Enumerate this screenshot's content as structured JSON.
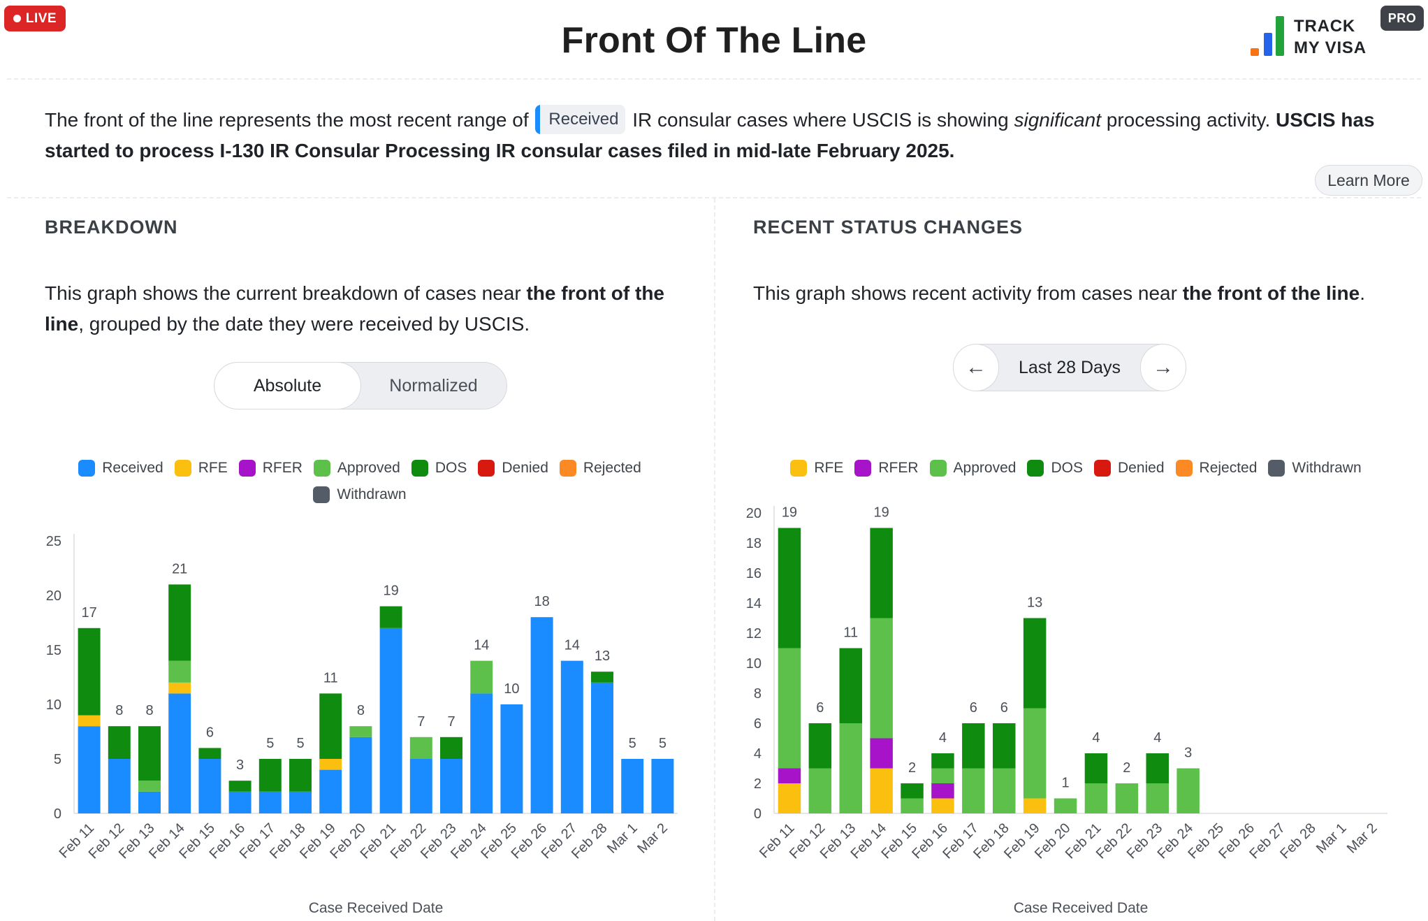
{
  "badge_live": "LIVE",
  "badge_pro": "PRO",
  "page_title": "Front Of The Line",
  "logo": {
    "line1": "TRACK",
    "line2": "MY VISA"
  },
  "intro": {
    "t1": "The front of the line represents the most recent range of",
    "chip": "Received",
    "t2": "IR consular cases where USCIS is showing",
    "t3": "significant",
    "t4": "processing activity.",
    "t5": "USCIS has started to process I-130 IR Consular Processing IR consular cases filed in mid-late February 2025."
  },
  "learn_more": "Learn More",
  "breakdown": {
    "heading": "BREAKDOWN",
    "desc_1": "This graph shows the current breakdown of cases near",
    "desc_bold_1": "the front of the line",
    "desc_2": ", grouped by the date they were received by USCIS.",
    "toggle": [
      "Absolute",
      "Normalized"
    ]
  },
  "recent": {
    "heading": "RECENT STATUS CHANGES",
    "desc_1": "This graph shows recent activity from cases near",
    "desc_bold_1": "the front of the line",
    "desc_2": ".",
    "range_label": "Last 28 Days",
    "prev_icon": "←",
    "next_icon": "→"
  },
  "colors": {
    "Received": "#1a8cff",
    "RFE": "#fbbf0f",
    "RFER": "#a613c9",
    "Approved": "#5cc04a",
    "DOS": "#0f8c0f",
    "Denied": "#d7190f",
    "Rejected": "#fb8a25",
    "Withdrawn": "#545c68"
  },
  "chart_data": [
    {
      "type": "bar",
      "stacked": true,
      "title": "BREAKDOWN",
      "xlabel": "Case Received Date",
      "ylabel": "",
      "ylim": [
        0,
        25
      ],
      "yticks": [
        0,
        5,
        10,
        15,
        20,
        25
      ],
      "legend": [
        "Received",
        "RFE",
        "RFER",
        "Approved",
        "DOS",
        "Denied",
        "Rejected",
        "Withdrawn"
      ],
      "categories": [
        "Feb 11",
        "Feb 12",
        "Feb 13",
        "Feb 14",
        "Feb 15",
        "Feb 16",
        "Feb 17",
        "Feb 18",
        "Feb 19",
        "Feb 20",
        "Feb 21",
        "Feb 22",
        "Feb 23",
        "Feb 24",
        "Feb 25",
        "Feb 26",
        "Feb 27",
        "Feb 28",
        "Mar 1",
        "Mar 2"
      ],
      "series": [
        {
          "name": "Received",
          "values": [
            8,
            5,
            2,
            11,
            5,
            2,
            2,
            2,
            4,
            7,
            17,
            5,
            5,
            11,
            10,
            18,
            14,
            12,
            5,
            5
          ]
        },
        {
          "name": "RFE",
          "values": [
            1,
            0,
            0,
            1,
            0,
            0,
            0,
            0,
            1,
            0,
            0,
            0,
            0,
            0,
            0,
            0,
            0,
            0,
            0,
            0
          ]
        },
        {
          "name": "RFER",
          "values": [
            0,
            0,
            0,
            0,
            0,
            0,
            0,
            0,
            0,
            0,
            0,
            0,
            0,
            0,
            0,
            0,
            0,
            0,
            0,
            0
          ]
        },
        {
          "name": "Approved",
          "values": [
            0,
            0,
            1,
            2,
            0,
            0,
            0,
            0,
            0,
            1,
            0,
            2,
            0,
            3,
            0,
            0,
            0,
            0,
            0,
            0
          ]
        },
        {
          "name": "DOS",
          "values": [
            8,
            3,
            5,
            7,
            1,
            1,
            3,
            3,
            6,
            0,
            2,
            0,
            2,
            0,
            0,
            0,
            0,
            1,
            0,
            0
          ]
        },
        {
          "name": "Denied",
          "values": [
            0,
            0,
            0,
            0,
            0,
            0,
            0,
            0,
            0,
            0,
            0,
            0,
            0,
            0,
            0,
            0,
            0,
            0,
            0,
            0
          ]
        },
        {
          "name": "Rejected",
          "values": [
            0,
            0,
            0,
            0,
            0,
            0,
            0,
            0,
            0,
            0,
            0,
            0,
            0,
            0,
            0,
            0,
            0,
            0,
            0,
            0
          ]
        },
        {
          "name": "Withdrawn",
          "values": [
            0,
            0,
            0,
            0,
            0,
            0,
            0,
            0,
            0,
            0,
            0,
            0,
            0,
            0,
            0,
            0,
            0,
            0,
            0,
            0
          ]
        }
      ],
      "totals": [
        17,
        8,
        8,
        21,
        6,
        3,
        5,
        5,
        11,
        8,
        19,
        7,
        7,
        14,
        10,
        18,
        14,
        13,
        5,
        5
      ]
    },
    {
      "type": "bar",
      "stacked": true,
      "title": "RECENT STATUS CHANGES",
      "xlabel": "Case Received Date",
      "ylabel": "",
      "ylim": [
        0,
        20
      ],
      "yticks": [
        0,
        2,
        4,
        6,
        8,
        10,
        12,
        14,
        16,
        18,
        20
      ],
      "legend": [
        "RFE",
        "RFER",
        "Approved",
        "DOS",
        "Denied",
        "Rejected",
        "Withdrawn"
      ],
      "categories": [
        "Feb 11",
        "Feb 12",
        "Feb 13",
        "Feb 14",
        "Feb 15",
        "Feb 16",
        "Feb 17",
        "Feb 18",
        "Feb 19",
        "Feb 20",
        "Feb 21",
        "Feb 22",
        "Feb 23",
        "Feb 24",
        "Feb 25",
        "Feb 26",
        "Feb 27",
        "Feb 28",
        "Mar 1",
        "Mar 2"
      ],
      "series": [
        {
          "name": "RFE",
          "values": [
            2,
            0,
            0,
            3,
            0,
            1,
            0,
            0,
            1,
            0,
            0,
            0,
            0,
            0,
            0,
            0,
            0,
            0,
            0,
            0
          ]
        },
        {
          "name": "RFER",
          "values": [
            1,
            0,
            0,
            2,
            0,
            1,
            0,
            0,
            0,
            0,
            0,
            0,
            0,
            0,
            0,
            0,
            0,
            0,
            0,
            0
          ]
        },
        {
          "name": "Approved",
          "values": [
            8,
            3,
            6,
            8,
            1,
            1,
            3,
            3,
            6,
            1,
            2,
            2,
            2,
            3,
            0,
            0,
            0,
            0,
            0,
            0
          ]
        },
        {
          "name": "DOS",
          "values": [
            8,
            3,
            5,
            6,
            1,
            1,
            3,
            3,
            6,
            0,
            2,
            0,
            2,
            0,
            0,
            0,
            0,
            0,
            0,
            0
          ]
        },
        {
          "name": "Denied",
          "values": [
            0,
            0,
            0,
            0,
            0,
            0,
            0,
            0,
            0,
            0,
            0,
            0,
            0,
            0,
            0,
            0,
            0,
            0,
            0,
            0
          ]
        },
        {
          "name": "Rejected",
          "values": [
            0,
            0,
            0,
            0,
            0,
            0,
            0,
            0,
            0,
            0,
            0,
            0,
            0,
            0,
            0,
            0,
            0,
            0,
            0,
            0
          ]
        },
        {
          "name": "Withdrawn",
          "values": [
            0,
            0,
            0,
            0,
            0,
            0,
            0,
            0,
            0,
            0,
            0,
            0,
            0,
            0,
            0,
            0,
            0,
            0,
            0,
            0
          ]
        }
      ],
      "totals": [
        19,
        6,
        11,
        19,
        2,
        4,
        6,
        6,
        13,
        1,
        4,
        2,
        4,
        3,
        null,
        null,
        null,
        null,
        null,
        null
      ]
    }
  ]
}
